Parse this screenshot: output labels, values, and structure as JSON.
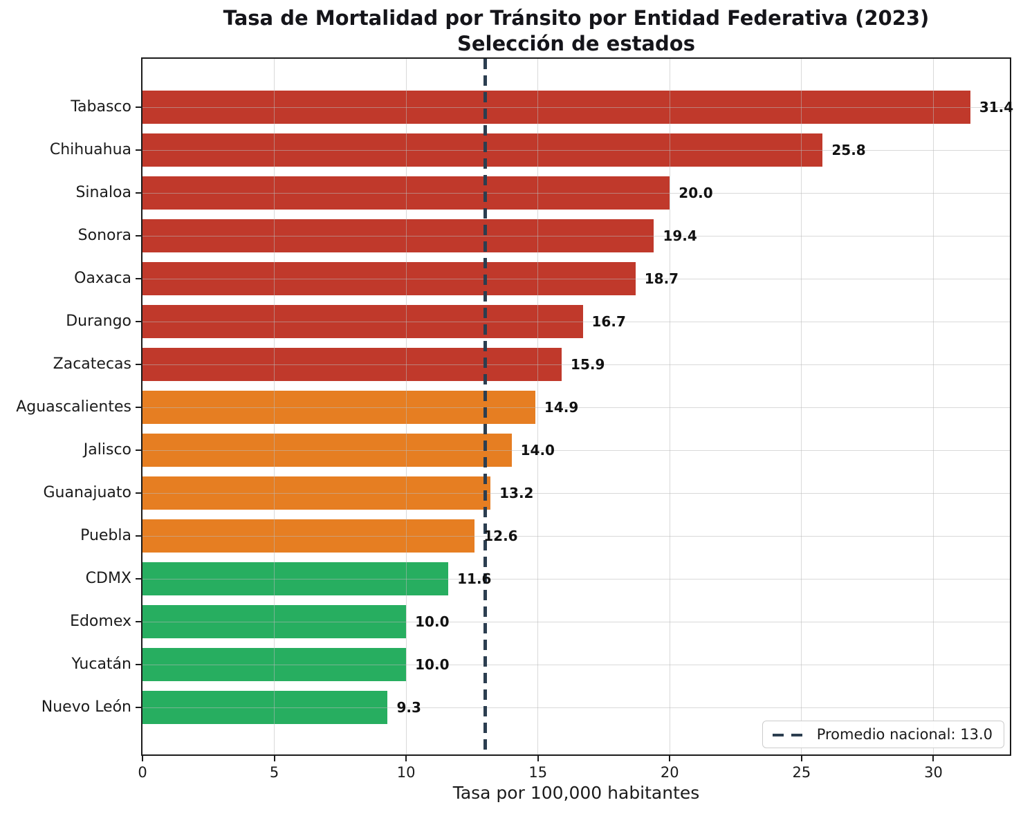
{
  "title": "Tasa de Mortalidad por Tránsito por Entidad Federativa (2023)",
  "subtitle": "Selección de estados",
  "chart_data": {
    "type": "bar",
    "orientation": "horizontal",
    "title": "Tasa de Mortalidad por Tránsito por Entidad Federativa (2023)",
    "subtitle": "Selección de estados",
    "xlabel": "Tasa por 100,000 habitantes",
    "ylabel": "",
    "x_ticks": [
      0,
      5,
      10,
      15,
      20,
      25,
      30
    ],
    "xlim": [
      0,
      32.9
    ],
    "grid": true,
    "categories": [
      "Tabasco",
      "Chihuahua",
      "Sinaloa",
      "Sonora",
      "Oaxaca",
      "Durango",
      "Zacatecas",
      "Aguascalientes",
      "Jalisco",
      "Guanajuato",
      "Puebla",
      "CDMX",
      "Edomex",
      "Yucatán",
      "Nuevo León"
    ],
    "values": [
      31.4,
      25.8,
      20.0,
      19.4,
      18.7,
      16.7,
      15.9,
      14.9,
      14.0,
      13.2,
      12.6,
      11.6,
      10.0,
      10.0,
      9.3
    ],
    "value_labels": [
      "31.4",
      "25.8",
      "20.0",
      "19.4",
      "18.7",
      "16.7",
      "15.9",
      "14.9",
      "14.0",
      "13.2",
      "12.6",
      "11.6",
      "10.0",
      "10.0",
      "9.3"
    ],
    "bar_color_groups": [
      "high",
      "high",
      "high",
      "high",
      "high",
      "high",
      "high",
      "mid",
      "mid",
      "mid",
      "mid",
      "low",
      "low",
      "low",
      "low"
    ],
    "palette": {
      "high": "#c0392b",
      "mid": "#e67e22",
      "low": "#27ae60"
    },
    "reference_line": {
      "value": 13.0,
      "legend_label": "Promedio nacional: 13.0",
      "color": "#2c3e50",
      "style": "dashed"
    },
    "legend_position": "lower right"
  }
}
